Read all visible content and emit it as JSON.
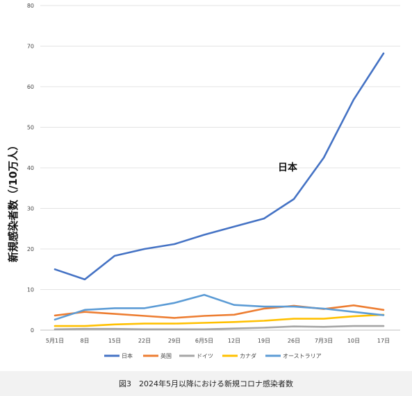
{
  "caption": "図3　2024年5月以降における新規コロナ感染者数",
  "chart_data": {
    "type": "line",
    "title": "",
    "xlabel": "",
    "ylabel": "新規感染者数（/10万人）",
    "ylim": [
      0,
      80
    ],
    "yticks": [
      0,
      10,
      20,
      30,
      40,
      50,
      60,
      70,
      80
    ],
    "categories": [
      "5月1日",
      "8日",
      "15日",
      "22日",
      "29日",
      "6月5日",
      "12日",
      "19日",
      "26日",
      "7月3日",
      "10日",
      "17日"
    ],
    "grid": "horizontal",
    "legend_position": "bottom",
    "annotations": [
      {
        "text": "日本",
        "series": "日本"
      }
    ],
    "series": [
      {
        "name": "日本",
        "color": "#4472c4",
        "values": [
          15.0,
          12.5,
          18.3,
          20.0,
          21.2,
          23.5,
          25.5,
          27.5,
          32.3,
          42.5,
          56.8,
          68.2
        ]
      },
      {
        "name": "英国",
        "color": "#ed7d31",
        "values": [
          3.6,
          4.5,
          4.0,
          3.5,
          3.0,
          3.5,
          3.8,
          5.3,
          6.0,
          5.2,
          6.1,
          5.0
        ]
      },
      {
        "name": "ドイツ",
        "color": "#a5a5a5",
        "values": [
          0.2,
          0.3,
          0.3,
          0.2,
          0.2,
          0.2,
          0.4,
          0.6,
          0.9,
          0.8,
          1.0,
          1.0
        ]
      },
      {
        "name": "カナダ",
        "color": "#ffc000",
        "values": [
          1.0,
          1.0,
          1.4,
          1.6,
          1.6,
          1.8,
          2.0,
          2.3,
          2.8,
          2.8,
          3.4,
          3.8
        ]
      },
      {
        "name": "オーストラリア",
        "color": "#5b9bd5",
        "values": [
          2.6,
          5.0,
          5.4,
          5.4,
          6.7,
          8.7,
          6.2,
          5.8,
          5.8,
          5.3,
          4.5,
          3.7
        ]
      }
    ]
  }
}
